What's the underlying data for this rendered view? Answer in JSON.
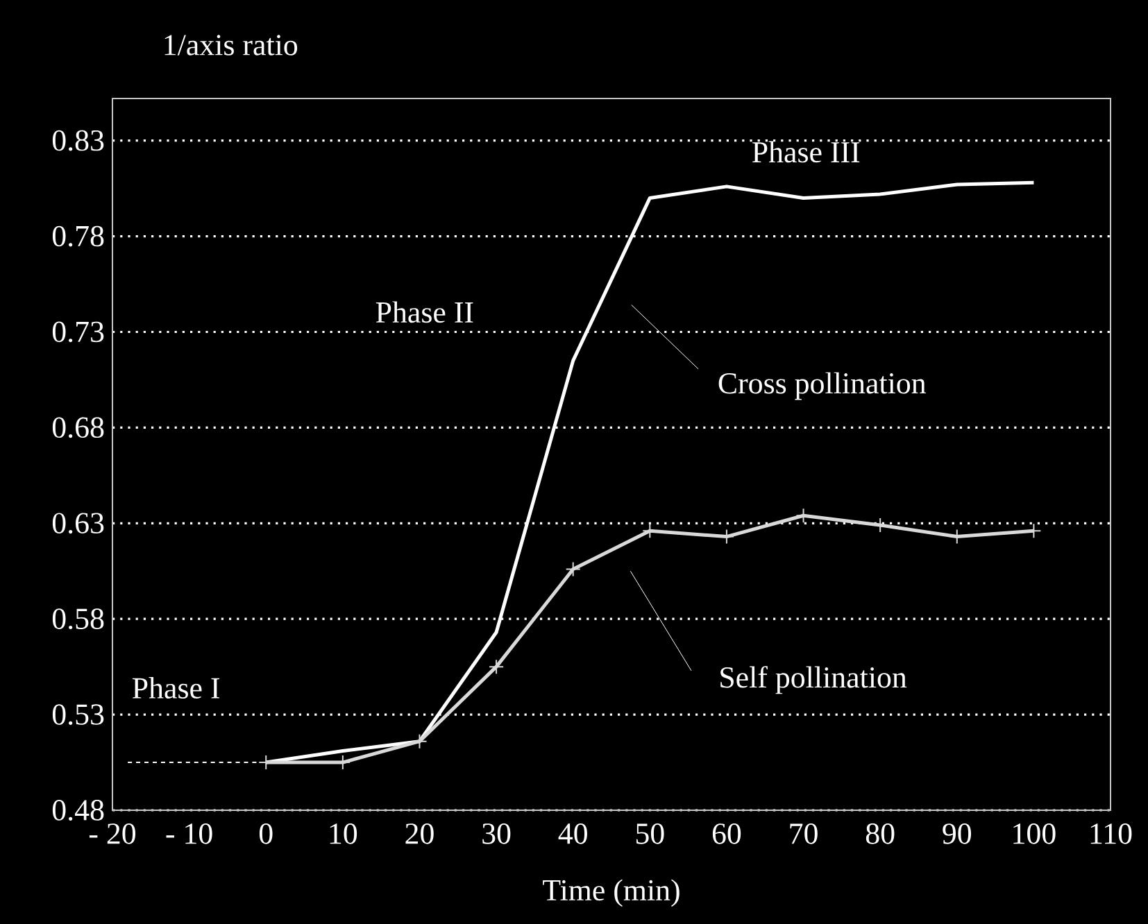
{
  "chart_data": {
    "type": "line",
    "xlabel": "Time (min)",
    "ylabel": "1/axis ratio",
    "xlim": [
      -20,
      110
    ],
    "ylim": [
      0.48,
      0.852
    ],
    "xticks": [
      {
        "value": -20,
        "label": "- 20"
      },
      {
        "value": -10,
        "label": "- 10"
      },
      0,
      10,
      20,
      30,
      40,
      50,
      60,
      70,
      80,
      90,
      100,
      110
    ],
    "yticks": [
      0.48,
      0.53,
      0.58,
      0.63,
      0.68,
      0.73,
      0.78,
      0.83
    ],
    "grid": "y",
    "x": [
      0,
      10,
      20,
      30,
      40,
      50,
      60,
      70,
      80,
      90,
      100
    ],
    "series": [
      {
        "color": "#ffffff",
        "marker": "none",
        "line_style": "solid",
        "values": [
          0.505,
          0.511,
          0.516,
          0.573,
          0.715,
          0.8,
          0.806,
          0.8,
          0.802,
          0.807,
          0.808
        ]
      },
      {
        "color": "#d9d9d9",
        "marker": "cross",
        "line_style": "solid",
        "values": [
          0.505,
          0.505,
          0.516,
          0.555,
          0.606,
          0.626,
          0.623,
          0.634,
          0.629,
          0.623,
          0.626
        ]
      },
      {
        "color": "#ffffff",
        "marker": "none",
        "line_style": "dashed",
        "x": [
          -18,
          0
        ],
        "values": [
          0.505,
          0.505
        ]
      }
    ],
    "annotations": [
      "Phase I",
      "Phase II",
      "Phase III",
      "Cross pollination",
      "Self pollination"
    ]
  }
}
